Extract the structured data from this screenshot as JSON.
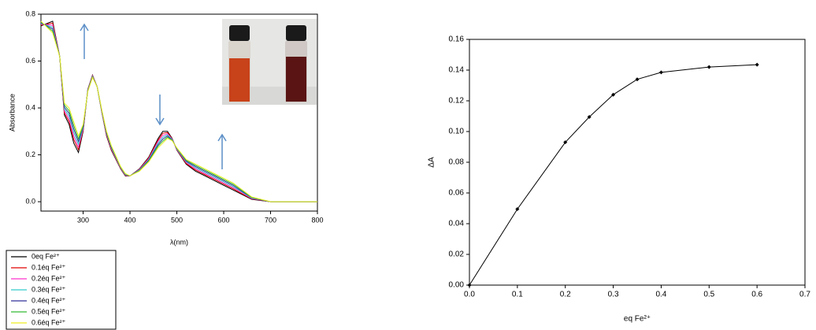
{
  "chart_data": [
    {
      "type": "line",
      "xlabel": "λ(nm)",
      "ylabel": "Absorbance",
      "x": [
        210,
        235,
        250,
        260,
        270,
        280,
        290,
        300,
        310,
        320,
        330,
        340,
        350,
        360,
        380,
        390,
        400,
        420,
        440,
        460,
        470,
        480,
        490,
        500,
        520,
        540,
        560,
        580,
        600,
        620,
        640,
        660,
        680,
        700,
        720,
        800
      ],
      "xlim": [
        210,
        800
      ],
      "xticks": [
        300,
        400,
        500,
        600,
        700,
        800
      ],
      "ylim": [
        -0.04,
        0.8
      ],
      "yticks": [
        {
          "value": 0,
          "label": "0.0"
        },
        0.2,
        0.4,
        0.6,
        0.8
      ],
      "legend": "below",
      "series": [
        {
          "name": "0eq Fe²⁺",
          "color": "#000000",
          "values": [
            0.75,
            0.77,
            0.62,
            0.37,
            0.33,
            0.25,
            0.21,
            0.3,
            0.48,
            0.54,
            0.49,
            0.38,
            0.28,
            0.22,
            0.14,
            0.11,
            0.11,
            0.14,
            0.19,
            0.27,
            0.3,
            0.3,
            0.27,
            0.22,
            0.16,
            0.13,
            0.11,
            0.09,
            0.07,
            0.05,
            0.03,
            0.01,
            0.005,
            0,
            0,
            0
          ]
        },
        {
          "name": "0.1éq Fe²⁺",
          "color": "#e00000",
          "values": [
            0.753,
            0.762,
            0.62,
            0.378,
            0.342,
            0.265,
            0.222,
            0.305,
            0.478,
            0.538,
            0.49,
            0.382,
            0.283,
            0.223,
            0.142,
            0.112,
            0.11,
            0.138,
            0.187,
            0.263,
            0.292,
            0.295,
            0.268,
            0.222,
            0.163,
            0.135,
            0.115,
            0.095,
            0.075,
            0.055,
            0.033,
            0.012,
            0.006,
            0,
            0,
            0
          ]
        },
        {
          "name": "0.2éq Fe²⁺",
          "color": "#ff33cc",
          "values": [
            0.757,
            0.753,
            0.62,
            0.387,
            0.353,
            0.28,
            0.233,
            0.31,
            0.477,
            0.537,
            0.49,
            0.383,
            0.287,
            0.227,
            0.143,
            0.113,
            0.11,
            0.137,
            0.183,
            0.257,
            0.283,
            0.29,
            0.267,
            0.223,
            0.167,
            0.14,
            0.12,
            0.1,
            0.08,
            0.06,
            0.037,
            0.013,
            0.007,
            0,
            0,
            0
          ]
        },
        {
          "name": "0.3éq Fe²⁺",
          "color": "#33cccc",
          "values": [
            0.76,
            0.745,
            0.62,
            0.395,
            0.365,
            0.295,
            0.245,
            0.315,
            0.475,
            0.535,
            0.49,
            0.385,
            0.29,
            0.23,
            0.145,
            0.115,
            0.11,
            0.135,
            0.18,
            0.25,
            0.275,
            0.285,
            0.265,
            0.225,
            0.17,
            0.145,
            0.125,
            0.105,
            0.085,
            0.065,
            0.04,
            0.015,
            0.008,
            0,
            0,
            0
          ]
        },
        {
          "name": "0.4éq Fe²⁺",
          "color": "#333399",
          "values": [
            0.763,
            0.737,
            0.62,
            0.403,
            0.377,
            0.31,
            0.257,
            0.32,
            0.473,
            0.533,
            0.49,
            0.387,
            0.293,
            0.233,
            0.147,
            0.117,
            0.11,
            0.133,
            0.177,
            0.243,
            0.267,
            0.28,
            0.263,
            0.227,
            0.173,
            0.15,
            0.13,
            0.11,
            0.09,
            0.07,
            0.043,
            0.017,
            0.008,
            0,
            0,
            0
          ]
        },
        {
          "name": "0.5éq Fe²⁺",
          "color": "#33bb33",
          "values": [
            0.767,
            0.728,
            0.62,
            0.412,
            0.388,
            0.325,
            0.268,
            0.325,
            0.472,
            0.532,
            0.49,
            0.388,
            0.297,
            0.237,
            0.148,
            0.118,
            0.11,
            0.132,
            0.173,
            0.237,
            0.258,
            0.275,
            0.262,
            0.228,
            0.177,
            0.155,
            0.135,
            0.115,
            0.095,
            0.075,
            0.047,
            0.018,
            0.009,
            0,
            0,
            0
          ]
        },
        {
          "name": "0.6éq Fe²⁺",
          "color": "#eeee22",
          "values": [
            0.77,
            0.72,
            0.62,
            0.42,
            0.4,
            0.34,
            0.28,
            0.33,
            0.47,
            0.53,
            0.49,
            0.39,
            0.3,
            0.24,
            0.15,
            0.12,
            0.11,
            0.13,
            0.17,
            0.23,
            0.25,
            0.27,
            0.26,
            0.23,
            0.18,
            0.16,
            0.14,
            0.12,
            0.1,
            0.08,
            0.05,
            0.02,
            0.01,
            0,
            0,
            0
          ]
        }
      ]
    },
    {
      "type": "line",
      "xlabel": "eq Fe²⁺",
      "ylabel": "ΔA",
      "x": [
        0,
        0.1,
        0.2,
        0.25,
        0.3,
        0.35,
        0.4,
        0.5,
        0.6
      ],
      "xlim": [
        0,
        0.7
      ],
      "xticks": [
        {
          "value": 0,
          "label": "0.0"
        },
        0.1,
        0.2,
        0.3,
        0.4,
        0.5,
        0.6,
        0.7
      ],
      "ylim": [
        0,
        0.16
      ],
      "yticks": [
        {
          "value": 0,
          "label": "0.00"
        },
        {
          "value": 0.02,
          "label": "0.02"
        },
        {
          "value": 0.04,
          "label": "0.04"
        },
        {
          "value": 0.06,
          "label": "0.06"
        },
        {
          "value": 0.08,
          "label": "0.08"
        },
        {
          "value": 0.1,
          "label": "0.10"
        },
        {
          "value": 0.12,
          "label": "0.12"
        },
        {
          "value": 0.14,
          "label": "0.14"
        },
        {
          "value": 0.16,
          "label": "0.16"
        }
      ],
      "series": [
        {
          "color": "#000000",
          "values": [
            0,
            0.0495,
            0.093,
            0.1095,
            0.124,
            0.134,
            0.1385,
            0.142,
            0.1435
          ]
        }
      ]
    }
  ]
}
